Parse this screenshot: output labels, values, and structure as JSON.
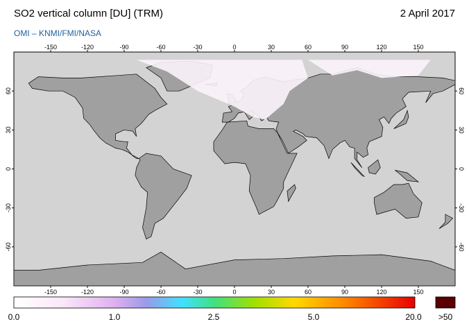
{
  "header": {
    "title": "SO2 vertical column [DU] (TRM)",
    "date": "2 April 2017",
    "source": "OMI  –  KNMI/FMI/NASA"
  },
  "map": {
    "lon_ticks": [
      -150,
      -120,
      -90,
      -60,
      -30,
      0,
      30,
      60,
      90,
      120,
      150
    ],
    "lat_ticks": [
      60,
      30,
      0,
      -30,
      -60
    ]
  },
  "colorbar": {
    "labels": [
      "0.0",
      "1.0",
      "2.5",
      "5.0",
      "20.0"
    ],
    "overflow_label": ">50"
  }
}
